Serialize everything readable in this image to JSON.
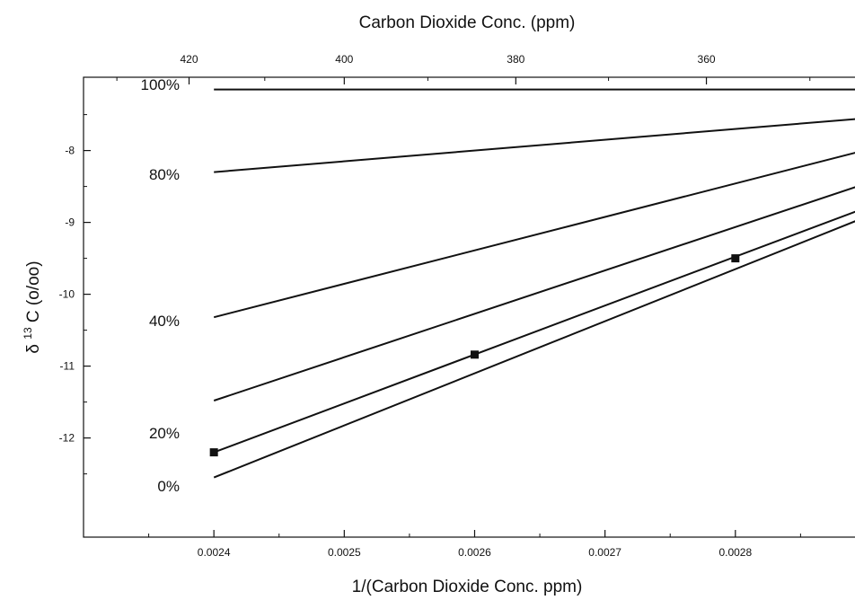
{
  "chart_data": {
    "type": "line",
    "top_axis_title": "Carbon Dioxide Conc. (ppm)",
    "top_ticks": [
      {
        "value": 420,
        "label": "420"
      },
      {
        "value": 400,
        "label": "400"
      },
      {
        "value": 380,
        "label": "380"
      },
      {
        "value": 360,
        "label": "360"
      }
    ],
    "xlabel": "1/(Carbon Dioxide Conc. ppm)",
    "ylabel_parts": {
      "delta": "δ",
      "superscript": "13",
      "main": "C  (o/oo)"
    },
    "xlim": [
      0.0023,
      0.00292
    ],
    "ylim": [
      -13.38,
      -6.98
    ],
    "x_ticks": [
      {
        "value": 0.0024,
        "label": "0.0024"
      },
      {
        "value": 0.0025,
        "label": "0.0025"
      },
      {
        "value": 0.0026,
        "label": "0.0026"
      },
      {
        "value": 0.0027,
        "label": "0.0027"
      },
      {
        "value": 0.0028,
        "label": "0.0028"
      }
    ],
    "y_ticks": [
      {
        "value": -8,
        "label": "-8"
      },
      {
        "value": -9,
        "label": "-9"
      },
      {
        "value": -10,
        "label": "-10"
      },
      {
        "value": -11,
        "label": "-11"
      },
      {
        "value": -12,
        "label": "-12"
      }
    ],
    "series": [
      {
        "name": "100%",
        "x": [
          0.0024,
          0.00292
        ],
        "y": [
          -7.15,
          -7.15
        ]
      },
      {
        "name": "80%",
        "x": [
          0.0024,
          0.00292
        ],
        "y": [
          -8.3,
          -7.52
        ]
      },
      {
        "x": [
          0.0024,
          0.00292
        ],
        "y": [
          -10.32,
          -7.9
        ]
      },
      {
        "name": "40%",
        "x": [
          0.0024,
          0.00292
        ],
        "y": [
          -11.48,
          -8.34
        ]
      },
      {
        "x": [
          0.0024,
          0.00292
        ],
        "y": [
          -12.2,
          -8.66
        ],
        "markers": [
          {
            "x": 0.0024,
            "y": -12.2
          },
          {
            "x": 0.0026,
            "y": -10.84
          },
          {
            "x": 0.0028,
            "y": -9.5
          }
        ]
      },
      {
        "x": [
          0.0024,
          0.00292
        ],
        "y": [
          -12.55,
          -8.78
        ]
      }
    ],
    "line_labels": [
      {
        "text": "100%",
        "y": -7.08
      },
      {
        "text": "80%",
        "y": -8.33
      },
      {
        "text": "40%",
        "y": -10.37
      },
      {
        "text": "20%",
        "y": -11.93
      },
      {
        "text": "0%",
        "y": -12.67
      }
    ]
  }
}
